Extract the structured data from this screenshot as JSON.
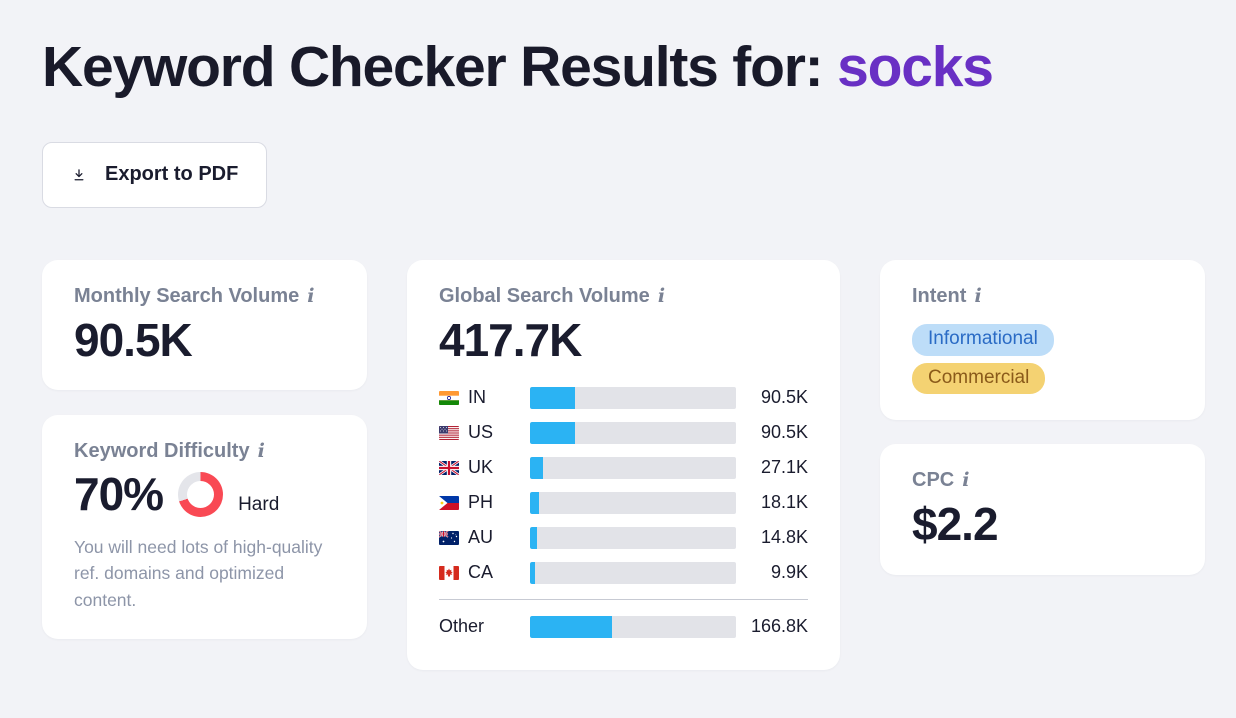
{
  "colors": {
    "accent_purple": "#6930c4",
    "bar_blue": "#2bb3f3",
    "difficulty_red": "#f94954",
    "donut_track": "#e4e5ea",
    "badge_informational_bg": "#bdddf8",
    "badge_informational_text": "#2a6bc5",
    "badge_commercial_bg": "#f4d272",
    "badge_commercial_text": "#8a5a1a"
  },
  "icons": {
    "info": "i",
    "download": "↓"
  },
  "header": {
    "title_prefix": "Keyword Checker Results for:",
    "keyword": "socks"
  },
  "toolbar": {
    "export_pdf_label": "Export to PDF"
  },
  "cards": {
    "monthly": {
      "label": "Monthly Search Volume",
      "value": "90.5K"
    },
    "difficulty": {
      "label": "Keyword Difficulty",
      "value": "70%",
      "percent": 70,
      "level": "Hard",
      "description": "You will need lots of high-quality ref. domains and optimized content."
    },
    "global": {
      "label": "Global Search Volume",
      "value": "417.7K",
      "rows": [
        {
          "code": "IN",
          "value": "90.5K",
          "percent": 21.7
        },
        {
          "code": "US",
          "value": "90.5K",
          "percent": 21.7
        },
        {
          "code": "UK",
          "value": "27.1K",
          "percent": 6.5
        },
        {
          "code": "PH",
          "value": "18.1K",
          "percent": 4.3
        },
        {
          "code": "AU",
          "value": "14.8K",
          "percent": 3.5
        },
        {
          "code": "CA",
          "value": "9.9K",
          "percent": 2.4
        },
        {
          "code": "Other",
          "value": "166.8K",
          "percent": 39.9
        }
      ]
    },
    "intent": {
      "label": "Intent",
      "badges": [
        {
          "label": "Informational"
        },
        {
          "label": "Commercial"
        }
      ]
    },
    "cpc": {
      "label": "CPC",
      "value": "$2.2"
    }
  },
  "chart_data": {
    "type": "bar",
    "title": "Global Search Volume by country",
    "categories": [
      "IN",
      "US",
      "UK",
      "PH",
      "AU",
      "CA",
      "Other"
    ],
    "values": [
      90500,
      90500,
      27100,
      18100,
      14800,
      9900,
      166800
    ],
    "value_labels": [
      "90.5K",
      "90.5K",
      "27.1K",
      "18.1K",
      "14.8K",
      "9.9K",
      "166.8K"
    ],
    "total_label": "417.7K",
    "orientation": "horizontal",
    "xlabel": "",
    "ylabel": ""
  }
}
